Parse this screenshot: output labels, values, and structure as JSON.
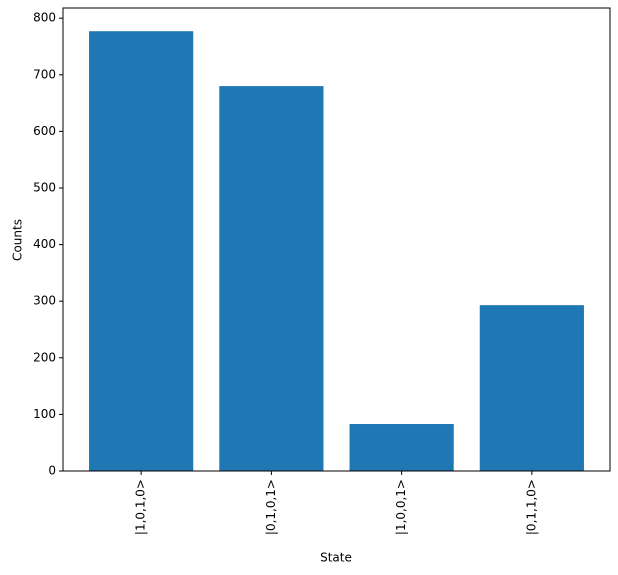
{
  "chart_data": {
    "type": "bar",
    "x_label": "State",
    "y_label": "Counts",
    "categories": [
      "|1,0,1,0>",
      "|0,1,0,1>",
      "|1,0,0,1>",
      "|0,1,1,0>"
    ],
    "values": [
      777,
      680,
      83,
      293
    ],
    "color": "#1f77b4",
    "ylim": [
      0,
      818
    ],
    "yticks": [
      0,
      100,
      200,
      300,
      400,
      500,
      600,
      700,
      800
    ],
    "grid": false
  }
}
